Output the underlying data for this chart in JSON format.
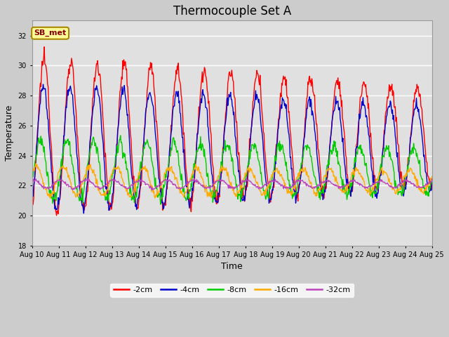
{
  "title": "Thermocouple Set A",
  "xlabel": "Time",
  "ylabel": "Temperature",
  "ylim": [
    18,
    33
  ],
  "xlim": [
    0,
    15
  ],
  "xtick_labels": [
    "Aug 10",
    "Aug 11",
    "Aug 12",
    "Aug 13",
    "Aug 14",
    "Aug 15",
    "Aug 16",
    "Aug 17",
    "Aug 18",
    "Aug 19",
    "Aug 20",
    "Aug 21",
    "Aug 22",
    "Aug 23",
    "Aug 24",
    "Aug 25"
  ],
  "legend_labels": [
    "-2cm",
    "-4cm",
    "-8cm",
    "-16cm",
    "-32cm"
  ],
  "line_colors": [
    "#ff0000",
    "#0000cc",
    "#00cc00",
    "#ffaa00",
    "#bb44bb"
  ],
  "annotation_text": "SB_met",
  "annotation_bg": "#ffff99",
  "annotation_border": "#aa8800",
  "background_color": "#cccccc",
  "plot_bg": "#e0e0e0",
  "grid_color": "#ffffff",
  "title_fontsize": 12,
  "axis_label_fontsize": 9,
  "tick_fontsize": 7,
  "legend_fontsize": 8
}
